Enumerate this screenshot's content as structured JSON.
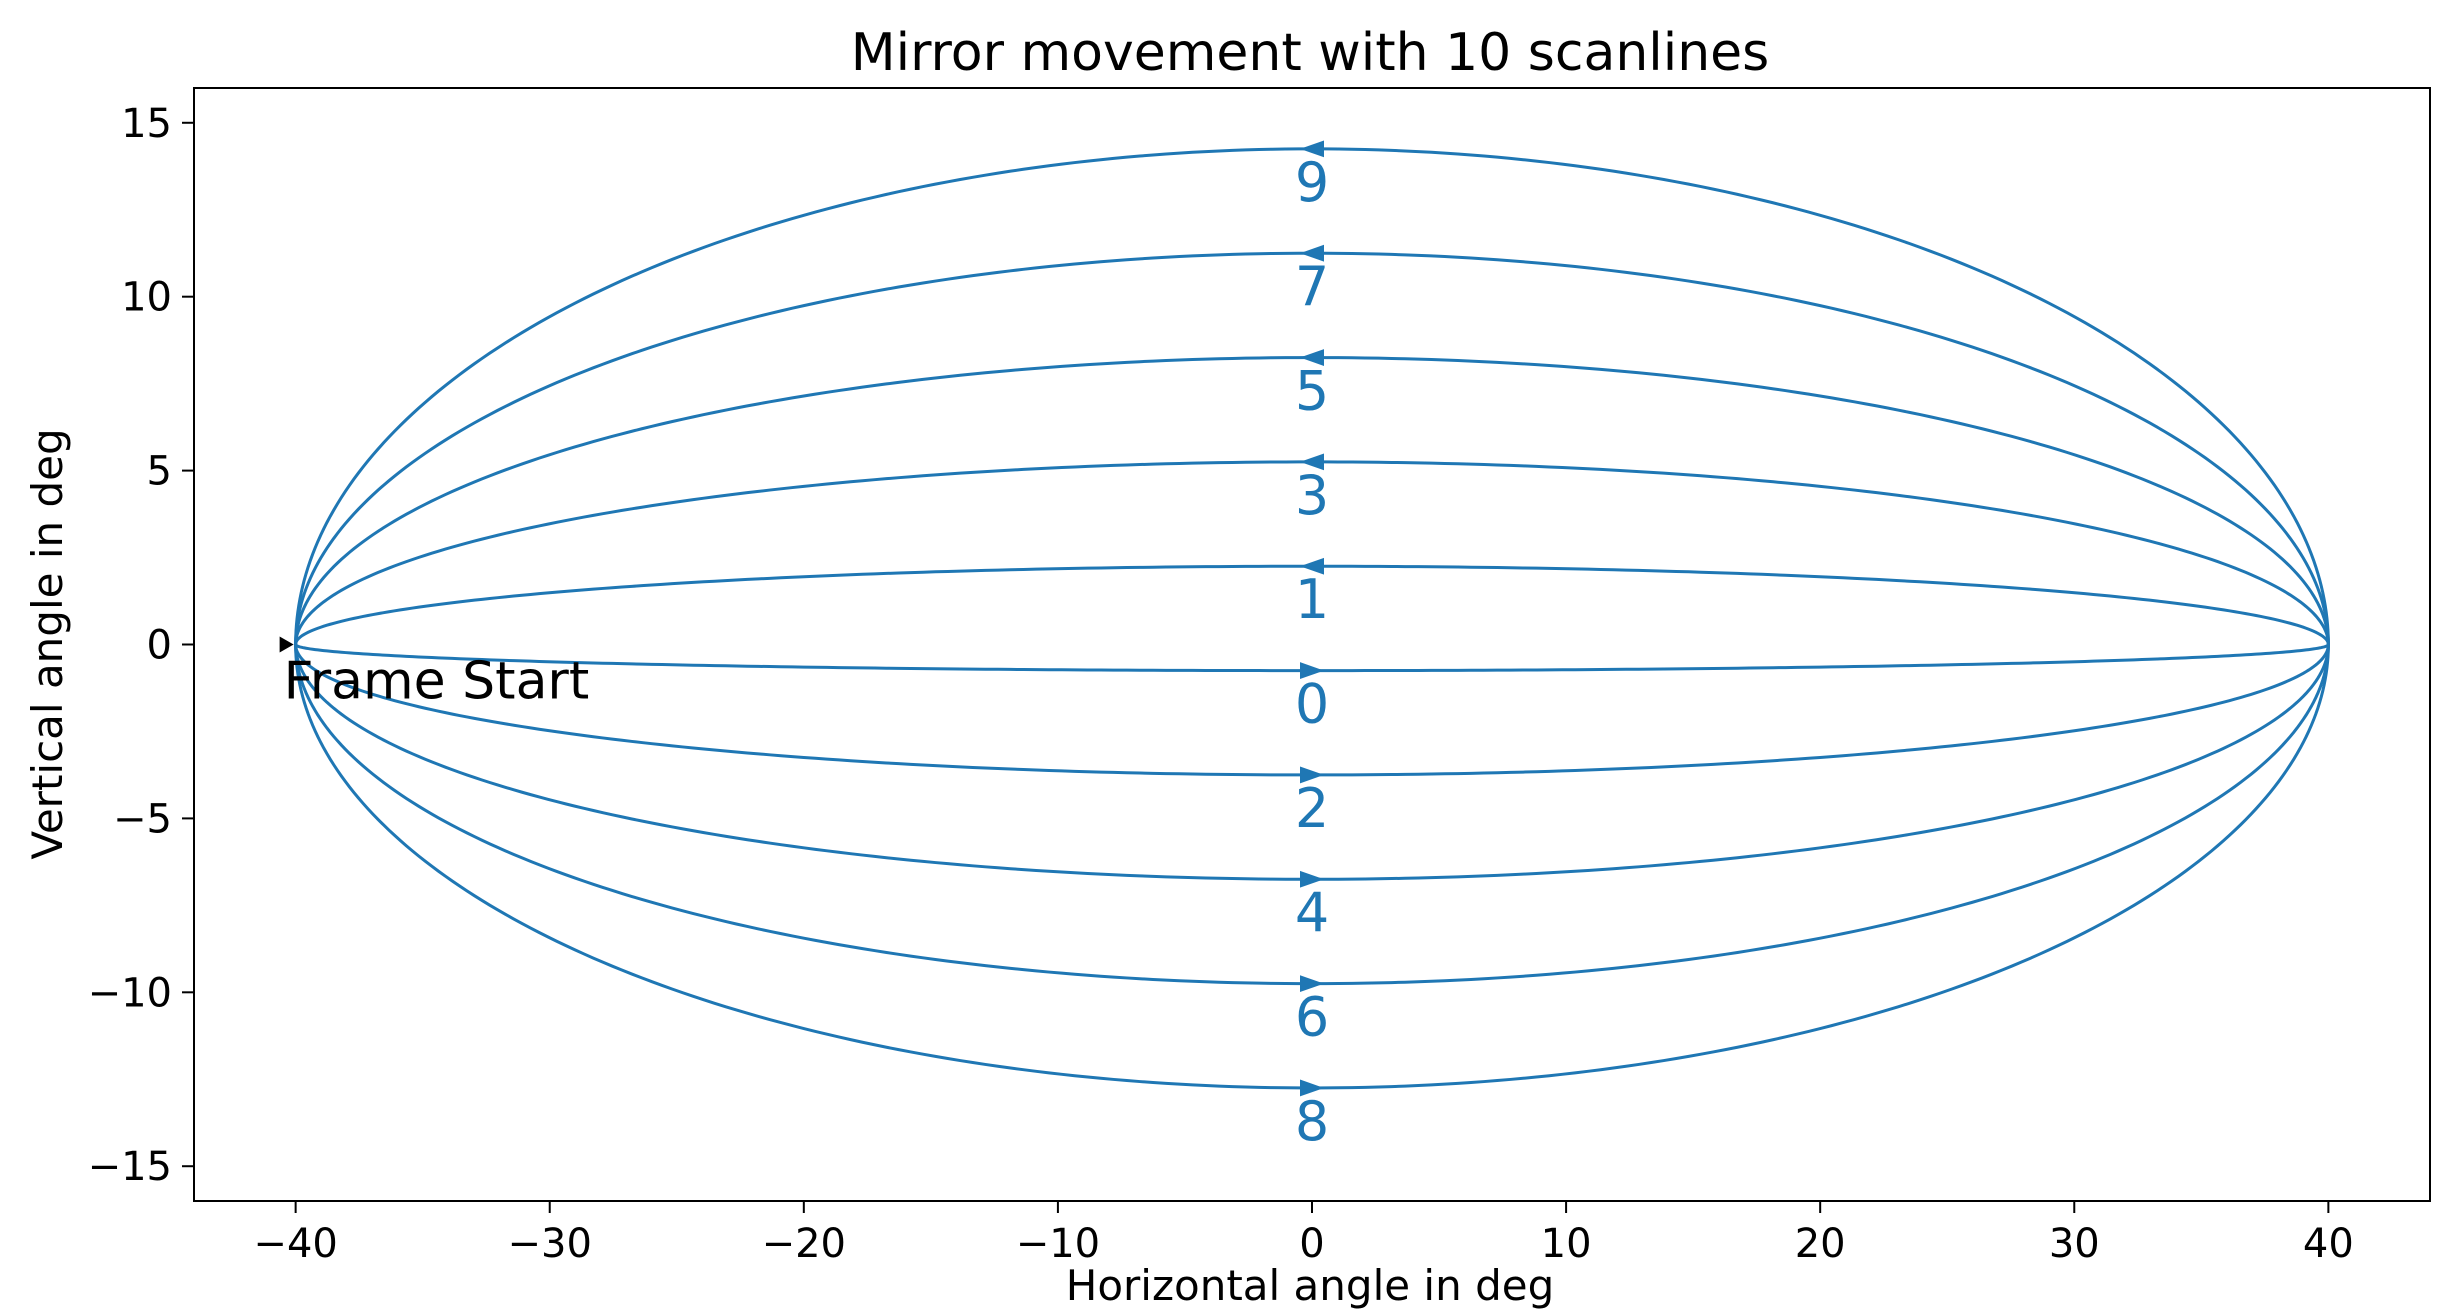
{
  "chart_data": {
    "type": "line",
    "title": "Mirror movement with 10 scanlines",
    "xlabel": "Horizontal angle in deg",
    "ylabel": "Vertical angle in deg",
    "xlim": [
      -44,
      44
    ],
    "ylim": [
      -16,
      16
    ],
    "xticks": [
      -40,
      -30,
      -20,
      -10,
      0,
      10,
      20,
      30,
      40
    ],
    "xtick_labels": [
      "−40",
      "−30",
      "−20",
      "−10",
      "0",
      "10",
      "20",
      "30",
      "40"
    ],
    "yticks": [
      -15,
      -10,
      -5,
      0,
      5,
      10,
      15
    ],
    "ytick_labels": [
      "−15",
      "−10",
      "−5",
      "0",
      "5",
      "10",
      "15"
    ],
    "grid": false,
    "line_color": "#1f77b4",
    "x_amplitude": 40,
    "series": [
      {
        "label": "0",
        "peak_y": -0.75,
        "direction": "right"
      },
      {
        "label": "1",
        "peak_y": 2.25,
        "direction": "left"
      },
      {
        "label": "2",
        "peak_y": -3.75,
        "direction": "right"
      },
      {
        "label": "3",
        "peak_y": 5.25,
        "direction": "left"
      },
      {
        "label": "4",
        "peak_y": -6.75,
        "direction": "right"
      },
      {
        "label": "5",
        "peak_y": 8.25,
        "direction": "left"
      },
      {
        "label": "6",
        "peak_y": -9.75,
        "direction": "right"
      },
      {
        "label": "7",
        "peak_y": 11.25,
        "direction": "left"
      },
      {
        "label": "8",
        "peak_y": -12.75,
        "direction": "right"
      },
      {
        "label": "9",
        "peak_y": 14.25,
        "direction": "left"
      }
    ],
    "annotation": {
      "text": "Frame Start",
      "x": -40,
      "y": 0,
      "color": "#000000"
    }
  }
}
